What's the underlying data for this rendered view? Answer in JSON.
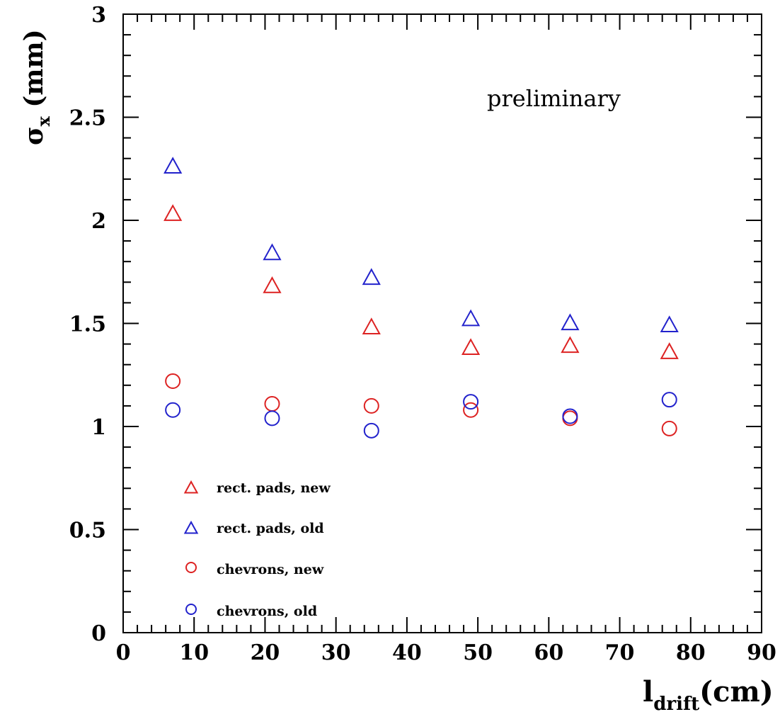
{
  "chart_data": {
    "type": "scatter",
    "xlim": [
      0,
      90
    ],
    "ylim": [
      0,
      3
    ],
    "xticks": [
      "0",
      "10",
      "20",
      "30",
      "40",
      "50",
      "60",
      "70",
      "80",
      "90"
    ],
    "yticks": [
      "0",
      "0.5",
      "1",
      "1.5",
      "2",
      "2.5",
      "3"
    ],
    "xlabel": {
      "main": "l",
      "sub": "drift",
      "unit": "(cm)"
    },
    "ylabel": {
      "main": "σ",
      "sub": "x",
      "unit": " (mm)"
    },
    "annotation": "preliminary",
    "legend_position": "bottom-left",
    "series": [
      {
        "name": "rect. pads, new",
        "marker": "triangle",
        "color": "#dd2222",
        "x": [
          7,
          21,
          35,
          49,
          63,
          77
        ],
        "y": [
          2.03,
          1.68,
          1.48,
          1.38,
          1.39,
          1.36
        ]
      },
      {
        "name": "rect. pads, old",
        "marker": "triangle",
        "color": "#2222cc",
        "x": [
          7,
          21,
          35,
          49,
          63,
          77
        ],
        "y": [
          2.26,
          1.84,
          1.72,
          1.52,
          1.5,
          1.49
        ]
      },
      {
        "name": "chevrons, new",
        "marker": "circle",
        "color": "#dd2222",
        "x": [
          7,
          21,
          35,
          49,
          63,
          77
        ],
        "y": [
          1.22,
          1.11,
          1.1,
          1.08,
          1.04,
          0.99
        ]
      },
      {
        "name": "chevrons, old",
        "marker": "circle",
        "color": "#2222cc",
        "x": [
          7,
          21,
          35,
          49,
          63,
          77
        ],
        "y": [
          1.08,
          1.04,
          0.98,
          1.12,
          1.05,
          1.13
        ]
      }
    ]
  }
}
